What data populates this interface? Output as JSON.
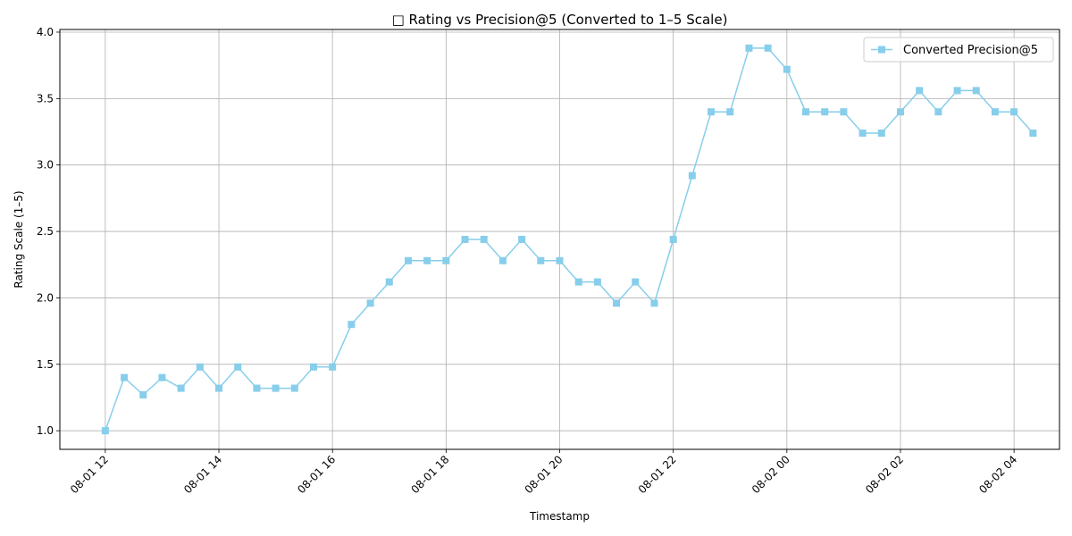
{
  "chart_data": {
    "type": "line",
    "title": "□ Rating vs Precision@5 (Converted to 1–5 Scale)",
    "xlabel": "Timestamp",
    "ylabel": "Rating Scale (1–5)",
    "ylim": [
      0.86,
      4.02
    ],
    "xlim": [
      "2025-08-01 11:12",
      "2025-08-02 04:48"
    ],
    "x_ticks": [
      "08-01 12",
      "08-01 14",
      "08-01 16",
      "08-01 18",
      "08-01 20",
      "08-01 22",
      "08-02 00",
      "08-02 02",
      "08-02 04"
    ],
    "y_ticks": [
      "1.0",
      "1.5",
      "2.0",
      "2.5",
      "3.0",
      "3.5",
      "4.0"
    ],
    "grid": true,
    "legend": "top-right",
    "series": [
      {
        "name": "Converted Precision@5",
        "color": "#87CEEB",
        "marker": "square",
        "x": [
          "2025-08-01 12:00",
          "2025-08-01 12:20",
          "2025-08-01 12:40",
          "2025-08-01 13:00",
          "2025-08-01 13:20",
          "2025-08-01 13:40",
          "2025-08-01 14:00",
          "2025-08-01 14:20",
          "2025-08-01 14:40",
          "2025-08-01 15:00",
          "2025-08-01 15:20",
          "2025-08-01 15:40",
          "2025-08-01 16:00",
          "2025-08-01 16:20",
          "2025-08-01 16:40",
          "2025-08-01 17:00",
          "2025-08-01 17:20",
          "2025-08-01 17:40",
          "2025-08-01 18:00",
          "2025-08-01 18:20",
          "2025-08-01 18:40",
          "2025-08-01 19:00",
          "2025-08-01 19:20",
          "2025-08-01 19:40",
          "2025-08-01 20:00",
          "2025-08-01 20:20",
          "2025-08-01 20:40",
          "2025-08-01 21:00",
          "2025-08-01 21:20",
          "2025-08-01 21:40",
          "2025-08-01 22:00",
          "2025-08-01 22:20",
          "2025-08-01 22:40",
          "2025-08-01 23:00",
          "2025-08-01 23:20",
          "2025-08-01 23:40",
          "2025-08-02 00:00",
          "2025-08-02 00:20",
          "2025-08-02 00:40",
          "2025-08-02 01:00",
          "2025-08-02 01:20",
          "2025-08-02 01:40",
          "2025-08-02 02:00",
          "2025-08-02 02:20",
          "2025-08-02 02:40",
          "2025-08-02 03:00",
          "2025-08-02 03:20",
          "2025-08-02 03:40",
          "2025-08-02 04:00",
          "2025-08-02 04:20"
        ],
        "y": [
          1.0,
          1.4,
          1.27,
          1.4,
          1.32,
          1.48,
          1.32,
          1.48,
          1.32,
          1.32,
          1.32,
          1.48,
          1.48,
          1.8,
          1.96,
          2.12,
          2.28,
          2.28,
          2.28,
          2.44,
          2.44,
          2.28,
          2.44,
          2.28,
          2.28,
          2.12,
          2.12,
          1.96,
          2.12,
          1.96,
          2.44,
          2.92,
          3.4,
          3.4,
          3.88,
          3.88,
          3.72,
          3.4,
          3.4,
          3.4,
          3.24,
          3.24,
          3.4,
          3.56,
          3.4,
          3.56,
          3.56,
          3.4,
          3.4,
          3.24
        ]
      }
    ]
  }
}
